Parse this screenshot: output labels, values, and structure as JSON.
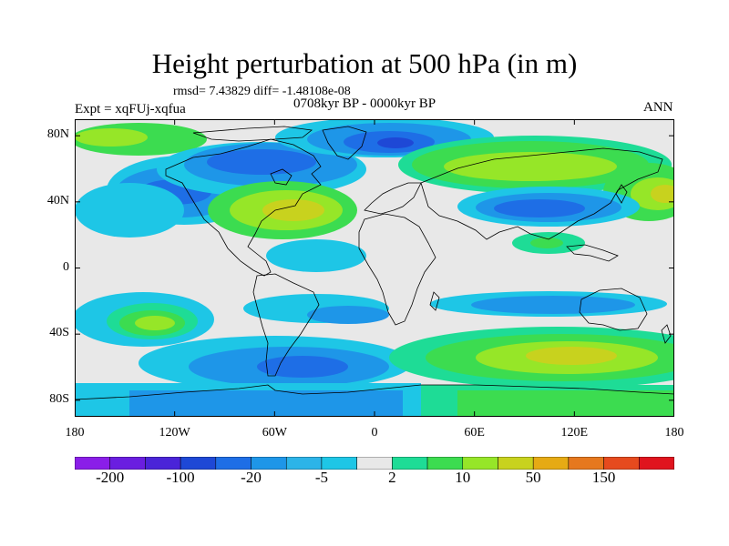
{
  "title": "Height perturbation at 500 hPa (in m)",
  "stats_line": "rmsd= 7.43829 diff= -1.48108e-08",
  "period": "0708kyr BP - 0000kyr BP",
  "experiment": "Expt = xqFUj-xqfua",
  "season": "ANN",
  "map": {
    "projection": "cylindrical equidistant",
    "lon_range": [
      -180,
      180
    ],
    "lat_range": [
      -90,
      90
    ],
    "lat_ticks": [
      {
        "lat": 80,
        "label": "80N"
      },
      {
        "lat": 40,
        "label": "40N"
      },
      {
        "lat": 0,
        "label": "0"
      },
      {
        "lat": -40,
        "label": "40S"
      },
      {
        "lat": -80,
        "label": "80S"
      }
    ],
    "lon_ticks": [
      {
        "lon": -180,
        "label": "180"
      },
      {
        "lon": -120,
        "label": "120W"
      },
      {
        "lon": -60,
        "label": "60W"
      },
      {
        "lon": 0,
        "label": "0"
      },
      {
        "lon": 60,
        "label": "60E"
      },
      {
        "lon": 120,
        "label": "120E"
      },
      {
        "lon": 180,
        "label": "180"
      }
    ]
  },
  "colorbar": {
    "colors": [
      "#8a1ee8",
      "#6a1ee0",
      "#4a24d8",
      "#1e48d6",
      "#1e6ee6",
      "#1e96e8",
      "#2cb4e8",
      "#1ec6e6",
      "#e8e8e8",
      "#1edc96",
      "#3cdc50",
      "#96e628",
      "#c8d21e",
      "#e6aa14",
      "#e6781e",
      "#e64a1e",
      "#e0141e"
    ],
    "tick_labels": [
      "-200",
      "-100",
      "-20",
      "-5",
      "2",
      "10",
      "50",
      "150"
    ],
    "label_positions": [
      1,
      3,
      5,
      7,
      9,
      11,
      13,
      15
    ]
  }
}
